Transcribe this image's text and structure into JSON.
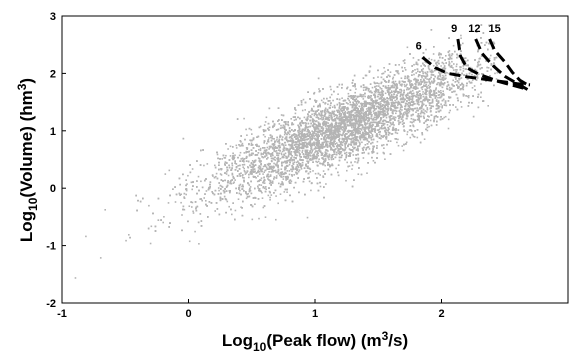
{
  "chart_data": {
    "type": "scatter",
    "xlabel": {
      "prefix": "Log",
      "sub": "10",
      "main": "(Peak flow) (m",
      "sup": "3",
      "suffix": "/s)"
    },
    "ylabel": {
      "prefix": "Log",
      "sub": "10",
      "main": "(Volume) (hm",
      "sup": "3",
      "suffix": ")"
    },
    "xlim": [
      -1,
      3
    ],
    "ylim": [
      -2,
      3
    ],
    "xticks": [
      -1,
      0,
      1,
      2
    ],
    "yticks": [
      -2,
      -1,
      0,
      1,
      2,
      3
    ],
    "grid": false,
    "point_color": "#b4b4b4",
    "scatter": {
      "description_points": [
        {
          "x": -0.9,
          "y": -1.55
        },
        {
          "x": -0.7,
          "y": -1.2
        },
        {
          "x": -0.5,
          "y": -0.9
        },
        {
          "x": -0.3,
          "y": -0.65
        },
        {
          "x": 0.0,
          "y": -0.3
        },
        {
          "x": 0.3,
          "y": 0.05
        },
        {
          "x": 0.6,
          "y": 0.4
        },
        {
          "x": 0.9,
          "y": 0.75
        },
        {
          "x": 1.2,
          "y": 1.05
        },
        {
          "x": 1.5,
          "y": 1.35
        },
        {
          "x": 1.8,
          "y": 1.65
        },
        {
          "x": 2.1,
          "y": 1.95
        },
        {
          "x": 2.3,
          "y": 2.1
        }
      ],
      "trend_slope": 0.95,
      "trend_intercept": -0.1,
      "x_center": 1.25,
      "x_spread": 0.55,
      "y_spread": 0.32
    },
    "series": [
      {
        "name": "6",
        "x": [
          1.85,
          1.95,
          2.05,
          2.2,
          2.4,
          2.6,
          2.7
        ],
        "y": [
          2.28,
          2.1,
          2.0,
          1.94,
          1.88,
          1.82,
          1.8
        ]
      },
      {
        "name": "9",
        "x": [
          2.13,
          2.15,
          2.2,
          2.3,
          2.45,
          2.65
        ],
        "y": [
          2.6,
          2.3,
          2.1,
          1.98,
          1.86,
          1.74
        ]
      },
      {
        "name": "12",
        "x": [
          2.27,
          2.32,
          2.4,
          2.5,
          2.6,
          2.68
        ],
        "y": [
          2.6,
          2.35,
          2.15,
          1.95,
          1.82,
          1.72
        ]
      },
      {
        "name": "15",
        "x": [
          2.38,
          2.42,
          2.5,
          2.56,
          2.62,
          2.68
        ],
        "y": [
          2.6,
          2.4,
          2.2,
          2.02,
          1.88,
          1.8
        ]
      }
    ],
    "curve_labels": [
      {
        "text": "6",
        "x": 1.82,
        "y": 2.42
      },
      {
        "text": "9",
        "x": 2.1,
        "y": 2.72
      },
      {
        "text": "12",
        "x": 2.26,
        "y": 2.72
      },
      {
        "text": "15",
        "x": 2.42,
        "y": 2.72
      }
    ]
  }
}
